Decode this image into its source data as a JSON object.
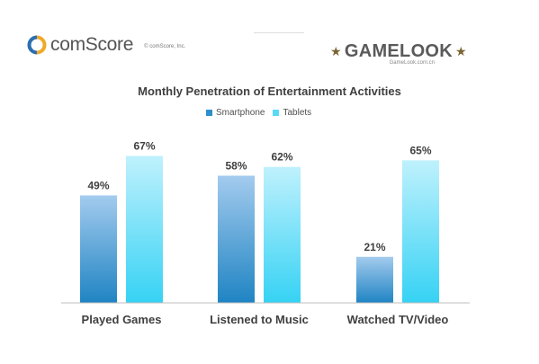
{
  "header": {
    "brand_name": "comScore",
    "copyright": "© comScore, Inc.",
    "partner_logo": "GAMELOOK",
    "partner_sub": "GameLook.com.cn"
  },
  "colors": {
    "smartphone_top": "#a3cbee",
    "smartphone_bottom": "#1f84c3",
    "tablets_top": "#bff1fd",
    "tablets_bottom": "#36d2f4",
    "axis": "#bfbfbf",
    "text": "#404040"
  },
  "chart_data": {
    "type": "bar",
    "title": "Monthly Penetration of Entertainment Activities",
    "categories": [
      "Played Games",
      "Listened to Music",
      "Watched TV/Video"
    ],
    "series": [
      {
        "name": "Smartphone",
        "values": [
          49,
          58,
          21
        ],
        "labels": [
          "49%",
          "58%",
          "21%"
        ]
      },
      {
        "name": "Tablets",
        "values": [
          67,
          62,
          65
        ],
        "labels": [
          "67%",
          "62%",
          "65%"
        ]
      }
    ],
    "ylim": [
      0,
      100
    ],
    "grid": false,
    "legend_position": "top-center"
  }
}
